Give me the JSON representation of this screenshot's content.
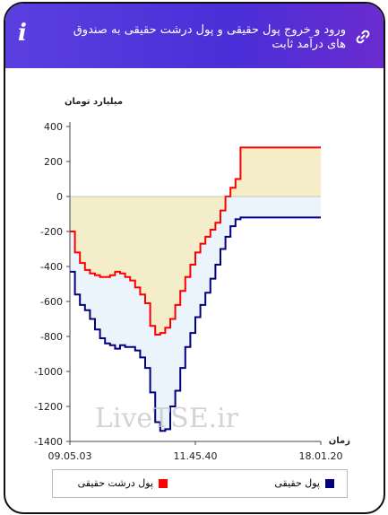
{
  "header": {
    "title": "ورود و خروج پول حقیقی و پول درشت حقیقی به صندوق های درآمد ثابت",
    "info_icon": "info-icon",
    "link_icon": "link-icon"
  },
  "chart_data": {
    "type": "line",
    "ylabel": "میلیارد تومان",
    "xlabel": "زمان",
    "watermark": "LiveTSE.ir",
    "ylim": [
      -1400,
      400
    ],
    "yticks": [
      400,
      200,
      0,
      -200,
      -400,
      -600,
      -800,
      -1000,
      -1200,
      -1400
    ],
    "xticks": [
      "09.05.03",
      "11.45.40",
      "18.01.20"
    ],
    "grid": false,
    "legend_position": "bottom",
    "series": [
      {
        "name": "پول حقیقی",
        "color": "#000080",
        "fill": "#eaf3fb",
        "x": [
          0,
          0.02,
          0.04,
          0.06,
          0.08,
          0.1,
          0.12,
          0.14,
          0.16,
          0.18,
          0.2,
          0.22,
          0.24,
          0.26,
          0.28,
          0.3,
          0.32,
          0.34,
          0.36,
          0.38,
          0.4,
          0.42,
          0.44,
          0.46,
          0.48,
          0.5,
          0.52,
          0.54,
          0.56,
          0.58,
          0.6,
          0.62,
          0.64,
          0.66,
          0.68,
          0.7,
          0.72,
          0.74,
          1
        ],
        "values": [
          -430,
          -560,
          -620,
          -650,
          -700,
          -760,
          -810,
          -840,
          -850,
          -870,
          -850,
          -860,
          -860,
          -880,
          -920,
          -980,
          -1120,
          -1290,
          -1340,
          -1330,
          -1200,
          -1110,
          -980,
          -860,
          -780,
          -690,
          -620,
          -550,
          -470,
          -390,
          -300,
          -230,
          -170,
          -130,
          -120,
          -120,
          -120,
          -120,
          -120
        ]
      },
      {
        "name": "پول درشت حقیقی",
        "color": "#ff0000",
        "fill": "#f5ebbf",
        "x": [
          0,
          0.02,
          0.04,
          0.06,
          0.08,
          0.1,
          0.12,
          0.14,
          0.16,
          0.18,
          0.2,
          0.22,
          0.24,
          0.26,
          0.28,
          0.3,
          0.32,
          0.34,
          0.36,
          0.38,
          0.4,
          0.42,
          0.44,
          0.46,
          0.48,
          0.5,
          0.52,
          0.54,
          0.56,
          0.58,
          0.6,
          0.62,
          0.64,
          0.66,
          0.68,
          0.7,
          0.72,
          0.74,
          1
        ],
        "values": [
          -200,
          -320,
          -380,
          -420,
          -440,
          -450,
          -460,
          -460,
          -450,
          -430,
          -440,
          -460,
          -480,
          -520,
          -560,
          -610,
          -740,
          -790,
          -780,
          -750,
          -700,
          -620,
          -540,
          -460,
          -390,
          -320,
          -270,
          -230,
          -190,
          -150,
          -80,
          0,
          50,
          100,
          280,
          280,
          280,
          280,
          280
        ]
      }
    ]
  }
}
